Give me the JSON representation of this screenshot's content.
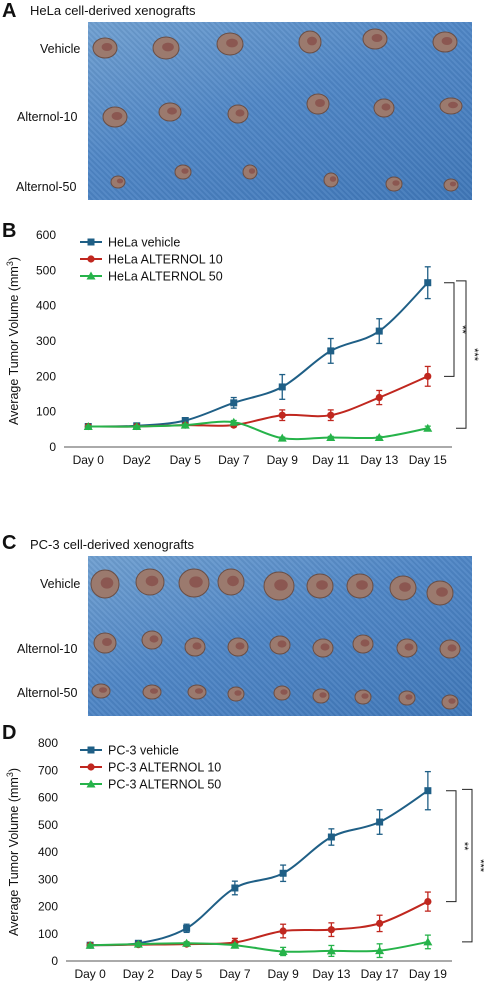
{
  "panelA": {
    "letter": "A",
    "title": "HeLa cell-derived xenografts",
    "row_labels": [
      "Vehicle",
      "Alternol-10",
      "Alternol-50"
    ]
  },
  "panelB": {
    "letter": "B"
  },
  "panelC": {
    "letter": "C",
    "title": "PC-3 cell-derived xenografts",
    "row_labels": [
      "Vehicle",
      "Alternol-10",
      "Alternol-50"
    ]
  },
  "panelD": {
    "letter": "D"
  },
  "colors": {
    "vehicle": "#1f5f86",
    "alternol10": "#c0271f",
    "alternol50": "#26b34a",
    "photo_bg": "#4f86c6"
  },
  "chart_data": [
    {
      "type": "line",
      "ylabel": "Average Tumor Volume (mm³)",
      "ylabel_text": "Average Tumor Volume (mm",
      "ylabel_sup": "3",
      "ylabel_close": ")",
      "categories": [
        "Day 0",
        "Day2",
        "Day 5",
        "Day 7",
        "Day 9",
        "Day 11",
        "Day 13",
        "Day 15"
      ],
      "ylim": [
        0,
        600
      ],
      "yticks": [
        0,
        100,
        200,
        300,
        400,
        500,
        600
      ],
      "legend_position": "top-left",
      "series": [
        {
          "name": "HeLa vehicle",
          "marker": "square",
          "color": "#1f5f86",
          "values": [
            58,
            60,
            75,
            125,
            170,
            272,
            328,
            465
          ],
          "errors": [
            3,
            3,
            5,
            15,
            35,
            35,
            35,
            45
          ]
        },
        {
          "name": "HeLa ALTERNOL 10",
          "marker": "circle",
          "color": "#c0271f",
          "values": [
            58,
            58,
            62,
            62,
            90,
            90,
            140,
            200
          ],
          "errors": [
            3,
            3,
            3,
            5,
            15,
            15,
            20,
            28
          ]
        },
        {
          "name": "HeLa ALTERNOL 50",
          "marker": "triangle",
          "color": "#26b34a",
          "values": [
            58,
            58,
            62,
            70,
            25,
            27,
            27,
            53
          ],
          "errors": [
            2,
            2,
            3,
            5,
            3,
            3,
            3,
            6
          ]
        }
      ],
      "significance": [
        {
          "label": "**",
          "between": [
            "HeLa vehicle",
            "HeLa ALTERNOL 10"
          ]
        },
        {
          "label": "***",
          "between": [
            "HeLa vehicle",
            "HeLa ALTERNOL 50"
          ]
        }
      ]
    },
    {
      "type": "line",
      "ylabel": "Average Tumor Volume (mm³)",
      "ylabel_text": "Average Tumor Volume (mm",
      "ylabel_sup": "3",
      "ylabel_close": ")",
      "categories": [
        "Day 0",
        "Day 2",
        "Day 5",
        "Day 7",
        "Day 9",
        "Day 13",
        "Day 17",
        "Day 19"
      ],
      "ylim": [
        0,
        800
      ],
      "yticks": [
        0,
        100,
        200,
        300,
        400,
        500,
        600,
        700,
        800
      ],
      "legend_position": "top-left",
      "series": [
        {
          "name": "PC-3 vehicle",
          "marker": "square",
          "color": "#1f5f86",
          "values": [
            58,
            65,
            120,
            268,
            322,
            455,
            510,
            625
          ],
          "errors": [
            3,
            5,
            15,
            25,
            30,
            30,
            45,
            70
          ]
        },
        {
          "name": "PC-3 ALTERNOL 10",
          "marker": "circle",
          "color": "#c0271f",
          "values": [
            58,
            60,
            62,
            68,
            110,
            115,
            138,
            218
          ],
          "errors": [
            3,
            3,
            5,
            15,
            25,
            25,
            30,
            35
          ]
        },
        {
          "name": "PC-3 ALTERNOL 50",
          "marker": "triangle",
          "color": "#26b34a",
          "values": [
            58,
            62,
            65,
            58,
            35,
            37,
            38,
            70
          ],
          "errors": [
            3,
            5,
            5,
            5,
            15,
            20,
            25,
            25
          ]
        }
      ],
      "significance": [
        {
          "label": "**",
          "between": [
            "PC-3 vehicle",
            "PC-3 ALTERNOL 10"
          ]
        },
        {
          "label": "***",
          "between": [
            "PC-3 vehicle",
            "PC-3 ALTERNOL 50"
          ]
        }
      ]
    }
  ]
}
